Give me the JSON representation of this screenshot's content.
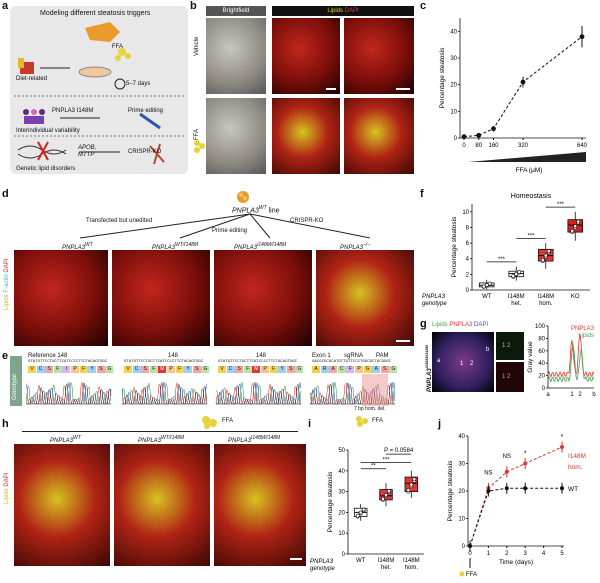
{
  "panels": {
    "a": {
      "letter": "a",
      "title": "Modeling different steatosis triggers",
      "ffa": "FFA",
      "diet": "Diet-related",
      "days": "5–7 days",
      "pnpla3": "PNPLA3 I148M",
      "interind": "Interindividual variability",
      "prime": "Prime editing",
      "apob": "APOB,",
      "mttp": "MTTP",
      "crispr": "CRISPR-KO",
      "genetic": "Genetic lipid disorders"
    },
    "b": {
      "letter": "b",
      "brightfield": "Brightfield",
      "lipids": "Lipids",
      "dapi": "DAPI",
      "vehicle": "Vehicle",
      "ffa": "FFA"
    },
    "c": {
      "letter": "c",
      "ylabel": "Percentage steatosis",
      "xlabel": "FFA (μM)"
    },
    "d": {
      "letter": "d",
      "line": "PNPLA3",
      "line_sup": "WT",
      "line_suffix": " line",
      "transfected": "Transfected but unedited",
      "prime": "Prime editing",
      "crispr": "CRISPR-KO",
      "g1": "PNPLA3",
      "g1sup": "WT",
      "g2": "PNPLA3",
      "g2sup": "WT/I148M",
      "g3": "PNPLA3",
      "g3sup": "I148M/I148M",
      "g4": "PNPLA3",
      "g4sup": "−/−",
      "side_lipids": "Lipids",
      "side_factin": "F-actin",
      "side_dapi": "DAPI"
    },
    "e": {
      "letter": "e",
      "genotype": "Genotype",
      "ref": "Reference 148",
      "s2": "148",
      "s3": "148",
      "exon": "Exon 1",
      "sgrna": "sgRNA",
      "pam": "PAM",
      "del": "7 bp hom. del.",
      "seq1": "GTATGTTCCTGCTTCATCCCCTTCTACAGTGGC",
      "seq2": "GTATGTTCCTGCTTCATCCCCTTCTACAGTGGC",
      "seq3": "GTATGTTCCTGCTTCATCCCCTTCTACAGTGGC",
      "seq4": "GACGCGCGCATGTTGTTCCCTGGCGCTGCGGGC",
      "aa1": [
        "V",
        "C",
        "S",
        "F",
        "I",
        "P",
        "F",
        "Y",
        "S",
        "G"
      ],
      "aa2": [
        "V",
        "C",
        "S",
        "F",
        "M",
        "P",
        "F",
        "Y",
        "S",
        "G"
      ],
      "aa3": [
        "V",
        "C",
        "S",
        "F",
        "M",
        "P",
        "F",
        "Y",
        "S",
        "G"
      ],
      "aa4": [
        "A",
        "R",
        "A",
        "C",
        "F",
        "P",
        "G",
        "A",
        "S",
        "G"
      ]
    },
    "f": {
      "letter": "f",
      "title": "Homeostasis",
      "ylabel": "Percentage steatosis",
      "genotype_line1": "PNPLA3",
      "genotype_line2": "genotype",
      "sig": "***"
    },
    "g": {
      "letter": "g",
      "lipids": "Lipids",
      "pnpla3": "PNPLA3",
      "dapi": "DAPI",
      "side": "PNPLA3",
      "side_sup": "I148M/I148M",
      "legend1": "PNPLA3",
      "legend2": "Lipids",
      "ylabel": "Gray value",
      "xa": "a",
      "x1": "1",
      "x2": "2",
      "xb": "b",
      "mark1": "1",
      "mark2": "2",
      "marka": "a",
      "markb": "b"
    },
    "h": {
      "letter": "h",
      "ffa": "FFA",
      "g1": "PNPLA3",
      "g1sup": "WT",
      "g2": "PNPLA3",
      "g2sup": "WT/I148M",
      "g3": "PNPLA3",
      "g3sup": "I148M/I148M",
      "side_lipids": "Lipids",
      "side_dapi": "DAPI"
    },
    "i": {
      "letter": "i",
      "ffa": "FFA",
      "ylabel": "Percentage steatosis",
      "p": "P = 0.0584",
      "sig1": "***",
      "sig2": "**",
      "genotype_line1": "PNPLA3",
      "genotype_line2": "genotype"
    },
    "j": {
      "letter": "j",
      "ylabel": "Percentage steatosis",
      "xlabel": "Time (days)",
      "ns1": "NS",
      "ns2": "NS",
      "star1": "*",
      "star2": "*",
      "series_i148m": "I148M",
      "series_i148m_2": "hom.",
      "series_wt": "WT",
      "ffa": "FFA"
    }
  },
  "chart_data": [
    {
      "panel": "c",
      "type": "line",
      "x": [
        0,
        80,
        160,
        320,
        640
      ],
      "y": [
        0.5,
        1,
        3.5,
        21,
        38
      ],
      "err": [
        0.3,
        0.3,
        1,
        2,
        4
      ],
      "xlabel": "FFA (μM)",
      "ylabel": "Percentage steatosis",
      "xticks": [
        "0",
        "80",
        "160",
        "320",
        "640"
      ],
      "yticks": [
        0,
        10,
        20,
        30,
        40
      ],
      "ylim": [
        0,
        45
      ]
    },
    {
      "panel": "f",
      "type": "box",
      "title": "Homeostasis",
      "categories": [
        "WT",
        "I148M het.",
        "I148M hom.",
        "KO"
      ],
      "cat_line1": [
        "WT",
        "I148M",
        "I148M",
        "KO"
      ],
      "cat_line2": [
        "",
        "het.",
        "hom.",
        ""
      ],
      "medians": [
        0.6,
        2.1,
        4.4,
        8.3
      ],
      "q1": [
        0.4,
        1.7,
        3.7,
        7.4
      ],
      "q3": [
        0.9,
        2.4,
        5.2,
        9.0
      ],
      "min": [
        0.1,
        1.2,
        2.7,
        6.3
      ],
      "max": [
        1.3,
        3.0,
        6.0,
        10.0
      ],
      "ylabel": "Percentage steatosis",
      "yticks": [
        0,
        2,
        4,
        6,
        8,
        10
      ],
      "ylim": [
        0,
        11
      ]
    },
    {
      "panel": "g",
      "type": "line",
      "series": [
        {
          "name": "PNPLA3",
          "color": "#e3342f"
        },
        {
          "name": "Lipids",
          "color": "#3fa34d"
        }
      ],
      "ylabel": "Gray value",
      "yticks": [
        0,
        20,
        40,
        60,
        80,
        100
      ],
      "ylim": [
        0,
        100
      ]
    },
    {
      "panel": "i",
      "type": "box",
      "categories": [
        "WT",
        "I148M het.",
        "I148M hom."
      ],
      "cat_line1": [
        "WT",
        "I148M",
        "I148M"
      ],
      "cat_line2": [
        "",
        "het.",
        "hom."
      ],
      "medians": [
        20,
        28,
        34
      ],
      "q1": [
        18,
        26,
        30
      ],
      "q3": [
        22,
        31,
        37
      ],
      "min": [
        16,
        23,
        27
      ],
      "max": [
        24,
        34,
        40
      ],
      "ylabel": "Percentage steatosis",
      "yticks": [
        0,
        10,
        20,
        30,
        40,
        50
      ],
      "ylim": [
        0,
        50
      ]
    },
    {
      "panel": "j",
      "type": "line",
      "x": [
        0,
        1,
        2,
        3,
        5
      ],
      "xticks": [
        "0",
        "1",
        "2",
        "3",
        "4",
        "5"
      ],
      "series": [
        {
          "name": "I148M hom.",
          "y": [
            0,
            21,
            27,
            30,
            36
          ],
          "color": "#e3342f"
        },
        {
          "name": "WT",
          "y": [
            0,
            20,
            21,
            21,
            21
          ],
          "color": "#111111"
        }
      ],
      "xlabel": "Time (days)",
      "ylabel": "Percentage steatosis",
      "yticks": [
        0,
        10,
        20,
        30,
        40
      ],
      "ylim": [
        0,
        40
      ]
    }
  ]
}
